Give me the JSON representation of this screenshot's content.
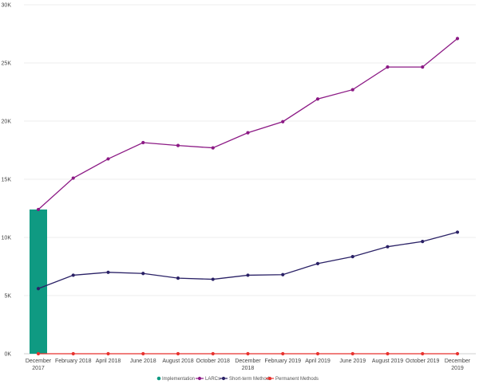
{
  "chart_data": {
    "type": "line",
    "categories": [
      [
        "December",
        "2017"
      ],
      [
        "February 2018"
      ],
      [
        "April 2018"
      ],
      [
        "June 2018"
      ],
      [
        "August 2018"
      ],
      [
        "October 2018"
      ],
      [
        "December",
        "2018"
      ],
      [
        "February 2019"
      ],
      [
        "April 2019"
      ],
      [
        "June 2019"
      ],
      [
        "August 2019"
      ],
      [
        "October 2019"
      ],
      [
        "December",
        "2019"
      ]
    ],
    "y_ticks": [
      {
        "value": 0,
        "label": "0K"
      },
      {
        "value": 5000,
        "label": "5K"
      },
      {
        "value": 10000,
        "label": "10K"
      },
      {
        "value": 15000,
        "label": "15K"
      },
      {
        "value": 20000,
        "label": "20K"
      },
      {
        "value": 25000,
        "label": "25K"
      },
      {
        "value": 30000,
        "label": "30K"
      }
    ],
    "ylim": [
      0,
      30000
    ],
    "grid": true,
    "legend_position": "bottom",
    "bar_series": {
      "name": "Implementation",
      "color": "#0f9a82",
      "values": [
        12400,
        null,
        null,
        null,
        null,
        null,
        null,
        null,
        null,
        null,
        null,
        null,
        null
      ]
    },
    "line_series": [
      {
        "name": "LARCs",
        "color": "#8c1a85",
        "values": [
          12400,
          15100,
          16750,
          18150,
          17900,
          17700,
          19000,
          19950,
          21900,
          22700,
          24650,
          24650,
          27100
        ]
      },
      {
        "name": "Short-term Methods",
        "color": "#2a2166",
        "values": [
          5600,
          6750,
          7000,
          6900,
          6500,
          6400,
          6750,
          6800,
          7750,
          8350,
          9200,
          9650,
          10450
        ]
      },
      {
        "name": "Permanent Methods",
        "color": "#e8322e",
        "values": [
          0,
          0,
          0,
          0,
          0,
          0,
          0,
          0,
          0,
          0,
          0,
          0,
          0
        ]
      }
    ]
  }
}
